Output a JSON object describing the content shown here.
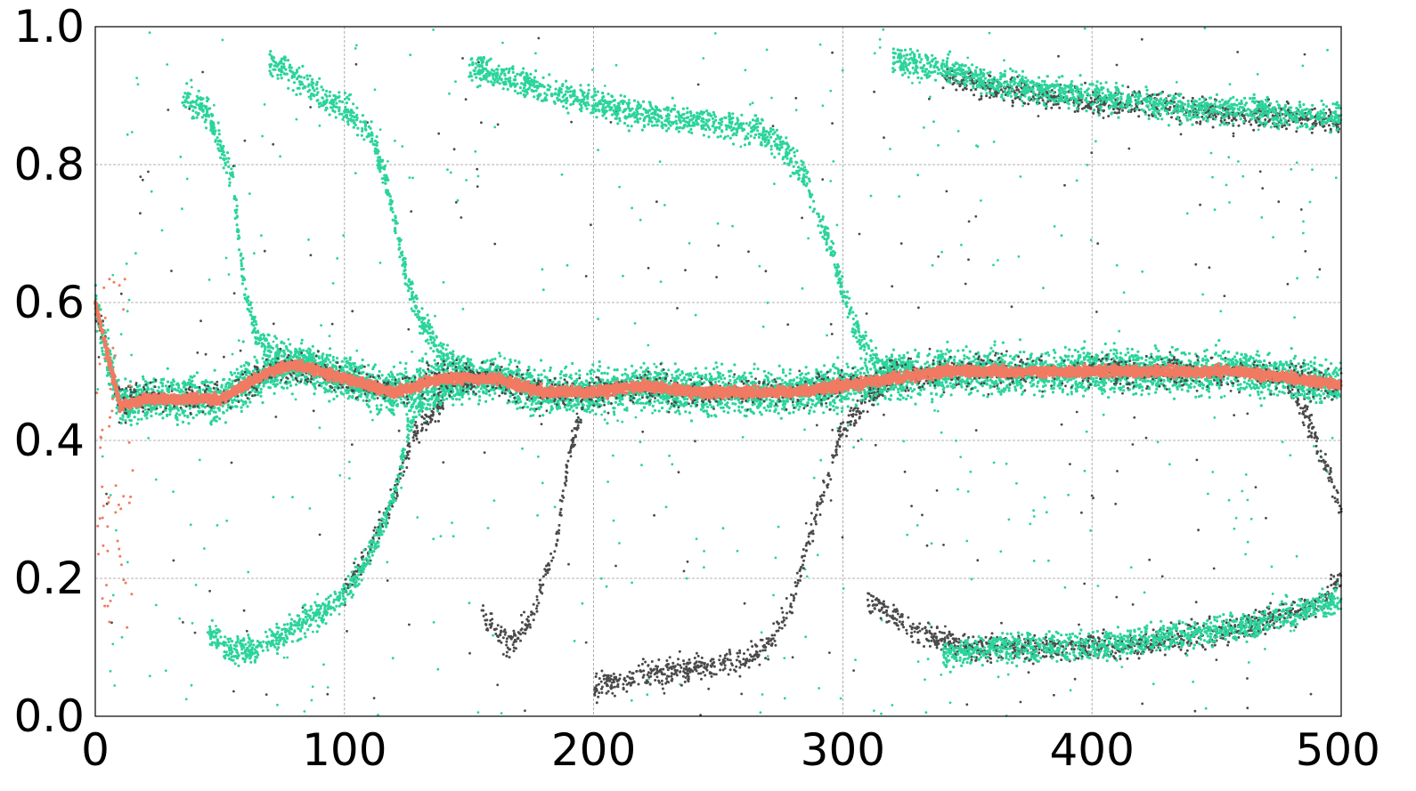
{
  "chart_data": {
    "type": "scatter",
    "title": "",
    "xlabel": "",
    "ylabel": "",
    "xlim": [
      0,
      500
    ],
    "ylim": [
      0,
      1
    ],
    "grid": true,
    "x_ticks": [
      "0",
      "100",
      "200",
      "300",
      "400",
      "500"
    ],
    "y_ticks": [
      "0.0",
      "0.2",
      "0.4",
      "0.6",
      "0.8",
      "1.0"
    ],
    "colors": {
      "central": "#f07a62",
      "population_a": "#2ad49a",
      "population_b": "#4a4a4a",
      "grid": "#9a9a9a"
    },
    "series": [
      {
        "color_key": "central",
        "x": [
          0,
          10,
          20,
          30,
          40,
          50,
          60,
          70,
          80,
          90,
          100,
          110,
          120,
          130,
          140,
          150,
          160,
          170,
          180,
          190,
          200,
          220,
          240,
          260,
          280,
          300,
          320,
          340,
          360,
          380,
          400,
          420,
          440,
          460,
          480,
          500
        ],
        "y": [
          0.6,
          0.45,
          0.46,
          0.46,
          0.46,
          0.46,
          0.48,
          0.5,
          0.51,
          0.5,
          0.49,
          0.48,
          0.47,
          0.48,
          0.49,
          0.49,
          0.49,
          0.48,
          0.47,
          0.47,
          0.47,
          0.48,
          0.47,
          0.47,
          0.47,
          0.48,
          0.49,
          0.5,
          0.5,
          0.5,
          0.5,
          0.5,
          0.5,
          0.5,
          0.49,
          0.48
        ]
      },
      {
        "color_key": "population_a",
        "branches": [
          {
            "x": [
              35,
              45,
              55,
              60,
              65,
              75,
              85,
              95
            ],
            "y": [
              0.9,
              0.88,
              0.78,
              0.62,
              0.55,
              0.52,
              0.51,
              0.5
            ]
          },
          {
            "x": [
              45,
              55,
              65,
              75,
              85,
              95,
              105,
              115,
              120,
              125
            ],
            "y": [
              0.12,
              0.09,
              0.1,
              0.12,
              0.14,
              0.16,
              0.2,
              0.27,
              0.32,
              0.4
            ]
          },
          {
            "x": [
              70,
              80,
              90,
              100,
              110,
              115,
              120,
              125,
              130,
              140,
              150
            ],
            "y": [
              0.95,
              0.93,
              0.9,
              0.88,
              0.85,
              0.8,
              0.72,
              0.64,
              0.58,
              0.52,
              0.5
            ]
          },
          {
            "x": [
              125,
              130,
              140,
              150
            ],
            "y": [
              0.42,
              0.45,
              0.47,
              0.48
            ]
          },
          {
            "x": [
              150,
              170,
              190,
              210,
              230,
              250,
              265,
              275,
              285,
              295,
              305,
              315,
              330
            ],
            "y": [
              0.94,
              0.92,
              0.9,
              0.88,
              0.87,
              0.86,
              0.85,
              0.83,
              0.78,
              0.68,
              0.56,
              0.51,
              0.5
            ]
          },
          {
            "x": [
              320,
              340,
              360,
              380,
              400,
              420,
              440,
              460,
              480,
              500
            ],
            "y": [
              0.95,
              0.94,
              0.92,
              0.91,
              0.9,
              0.89,
              0.88,
              0.88,
              0.87,
              0.87
            ]
          },
          {
            "x": [
              340,
              360,
              380,
              400,
              420,
              440,
              460,
              480,
              500
            ],
            "y": [
              0.09,
              0.1,
              0.1,
              0.1,
              0.11,
              0.12,
              0.13,
              0.15,
              0.17
            ]
          }
        ]
      },
      {
        "color_key": "population_b",
        "branches": [
          {
            "x": [
              100,
              110,
              120,
              125,
              130,
              140
            ],
            "y": [
              0.18,
              0.24,
              0.32,
              0.38,
              0.42,
              0.46
            ]
          },
          {
            "x": [
              155,
              165,
              175,
              185,
              190,
              195
            ],
            "y": [
              0.15,
              0.1,
              0.14,
              0.25,
              0.38,
              0.44
            ]
          },
          {
            "x": [
              200,
              220,
              240,
              260,
              270,
              280,
              285,
              290,
              295,
              300,
              310,
              320
            ],
            "y": [
              0.04,
              0.06,
              0.07,
              0.08,
              0.1,
              0.17,
              0.24,
              0.3,
              0.36,
              0.42,
              0.46,
              0.49
            ]
          },
          {
            "x": [
              310,
              330,
              350,
              370,
              390,
              410,
              430,
              450,
              470,
              490,
              500
            ],
            "y": [
              0.17,
              0.12,
              0.1,
              0.1,
              0.1,
              0.1,
              0.11,
              0.12,
              0.14,
              0.16,
              0.2
            ]
          },
          {
            "x": [
              340,
              360,
              380,
              400,
              420,
              440,
              460,
              480,
              500
            ],
            "y": [
              0.93,
              0.91,
              0.9,
              0.89,
              0.89,
              0.88,
              0.87,
              0.87,
              0.86
            ]
          },
          {
            "x": [
              480,
              490,
              500
            ],
            "y": [
              0.48,
              0.4,
              0.3
            ]
          }
        ]
      }
    ]
  }
}
